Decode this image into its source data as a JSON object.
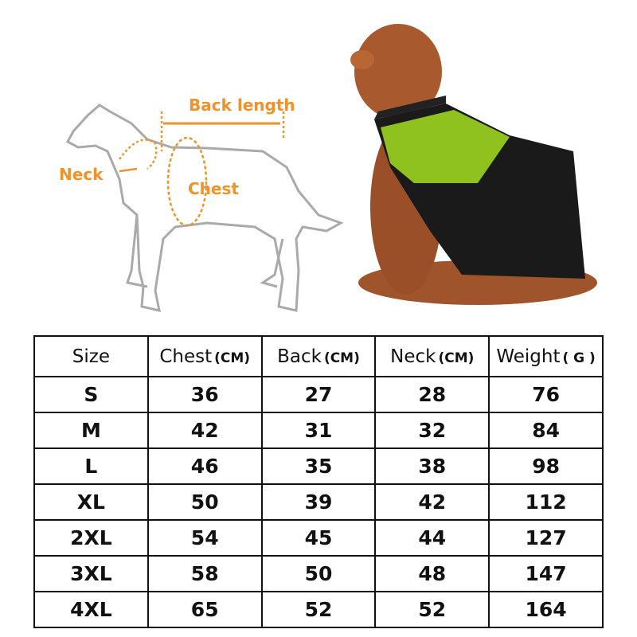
{
  "diagram": {
    "labels": {
      "back_length": "Back length",
      "neck": "Neck",
      "chest": "Chest"
    }
  },
  "table": {
    "header": [
      {
        "label": "Size"
      },
      {
        "label": "Chest",
        "unit": "(CM)"
      },
      {
        "label": "Back",
        "unit": "(CM)"
      },
      {
        "label": "Neck",
        "unit": "(CM)"
      },
      {
        "label": "Weight",
        "unit": "( G )"
      }
    ],
    "rows": [
      [
        "S",
        36,
        27,
        28,
        76
      ],
      [
        "M",
        42,
        31,
        32,
        84
      ],
      [
        "L",
        46,
        35,
        38,
        98
      ],
      [
        "XL",
        50,
        39,
        42,
        112
      ],
      [
        "2XL",
        54,
        45,
        44,
        127
      ],
      [
        "3XL",
        58,
        50,
        48,
        147
      ],
      [
        "4XL",
        65,
        52,
        52,
        164
      ]
    ]
  }
}
